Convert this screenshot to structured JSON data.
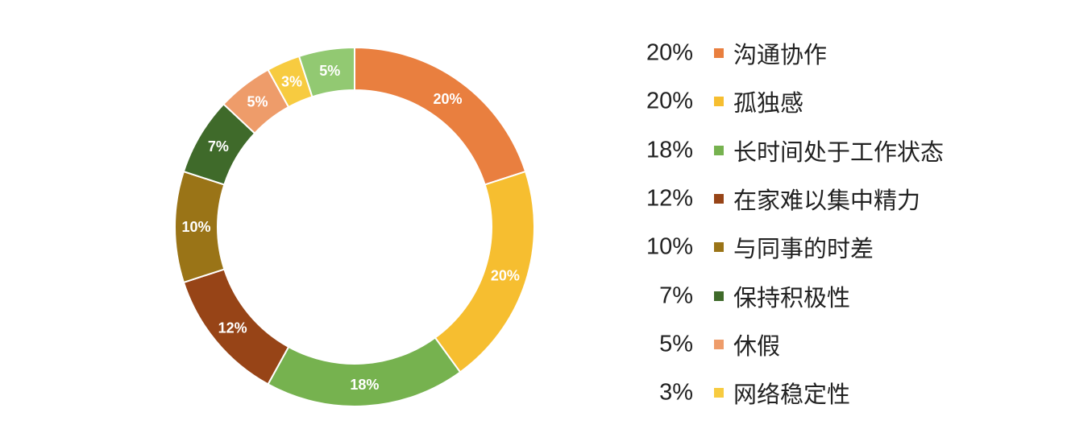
{
  "chart_data": {
    "type": "pie",
    "variant": "donut",
    "unit": "%",
    "slices": [
      {
        "label": "沟通协作",
        "value": 20,
        "display": "20%",
        "color": "#E97F3F"
      },
      {
        "label": "孤独感",
        "value": 20,
        "display": "20%",
        "color": "#F6BE30"
      },
      {
        "label": "长时间处于工作状态",
        "value": 18,
        "display": "18%",
        "color": "#76B24F"
      },
      {
        "label": "在家难以集中精力",
        "value": 12,
        "display": "12%",
        "color": "#974417"
      },
      {
        "label": "与同事的时差",
        "value": 10,
        "display": "10%",
        "color": "#9A7417"
      },
      {
        "label": "保持积极性",
        "value": 7,
        "display": "7%",
        "color": "#3F6A2A"
      },
      {
        "label": "休假",
        "value": 5,
        "display": "5%",
        "color": "#EE9C6A"
      },
      {
        "label": "网络稳定性",
        "value": 3,
        "display": "3%",
        "color": "#F7CB40"
      }
    ],
    "unlisted_slices": [
      {
        "value": 5,
        "display": "5%",
        "color": "#92C972"
      }
    ],
    "legend_position": "right"
  }
}
